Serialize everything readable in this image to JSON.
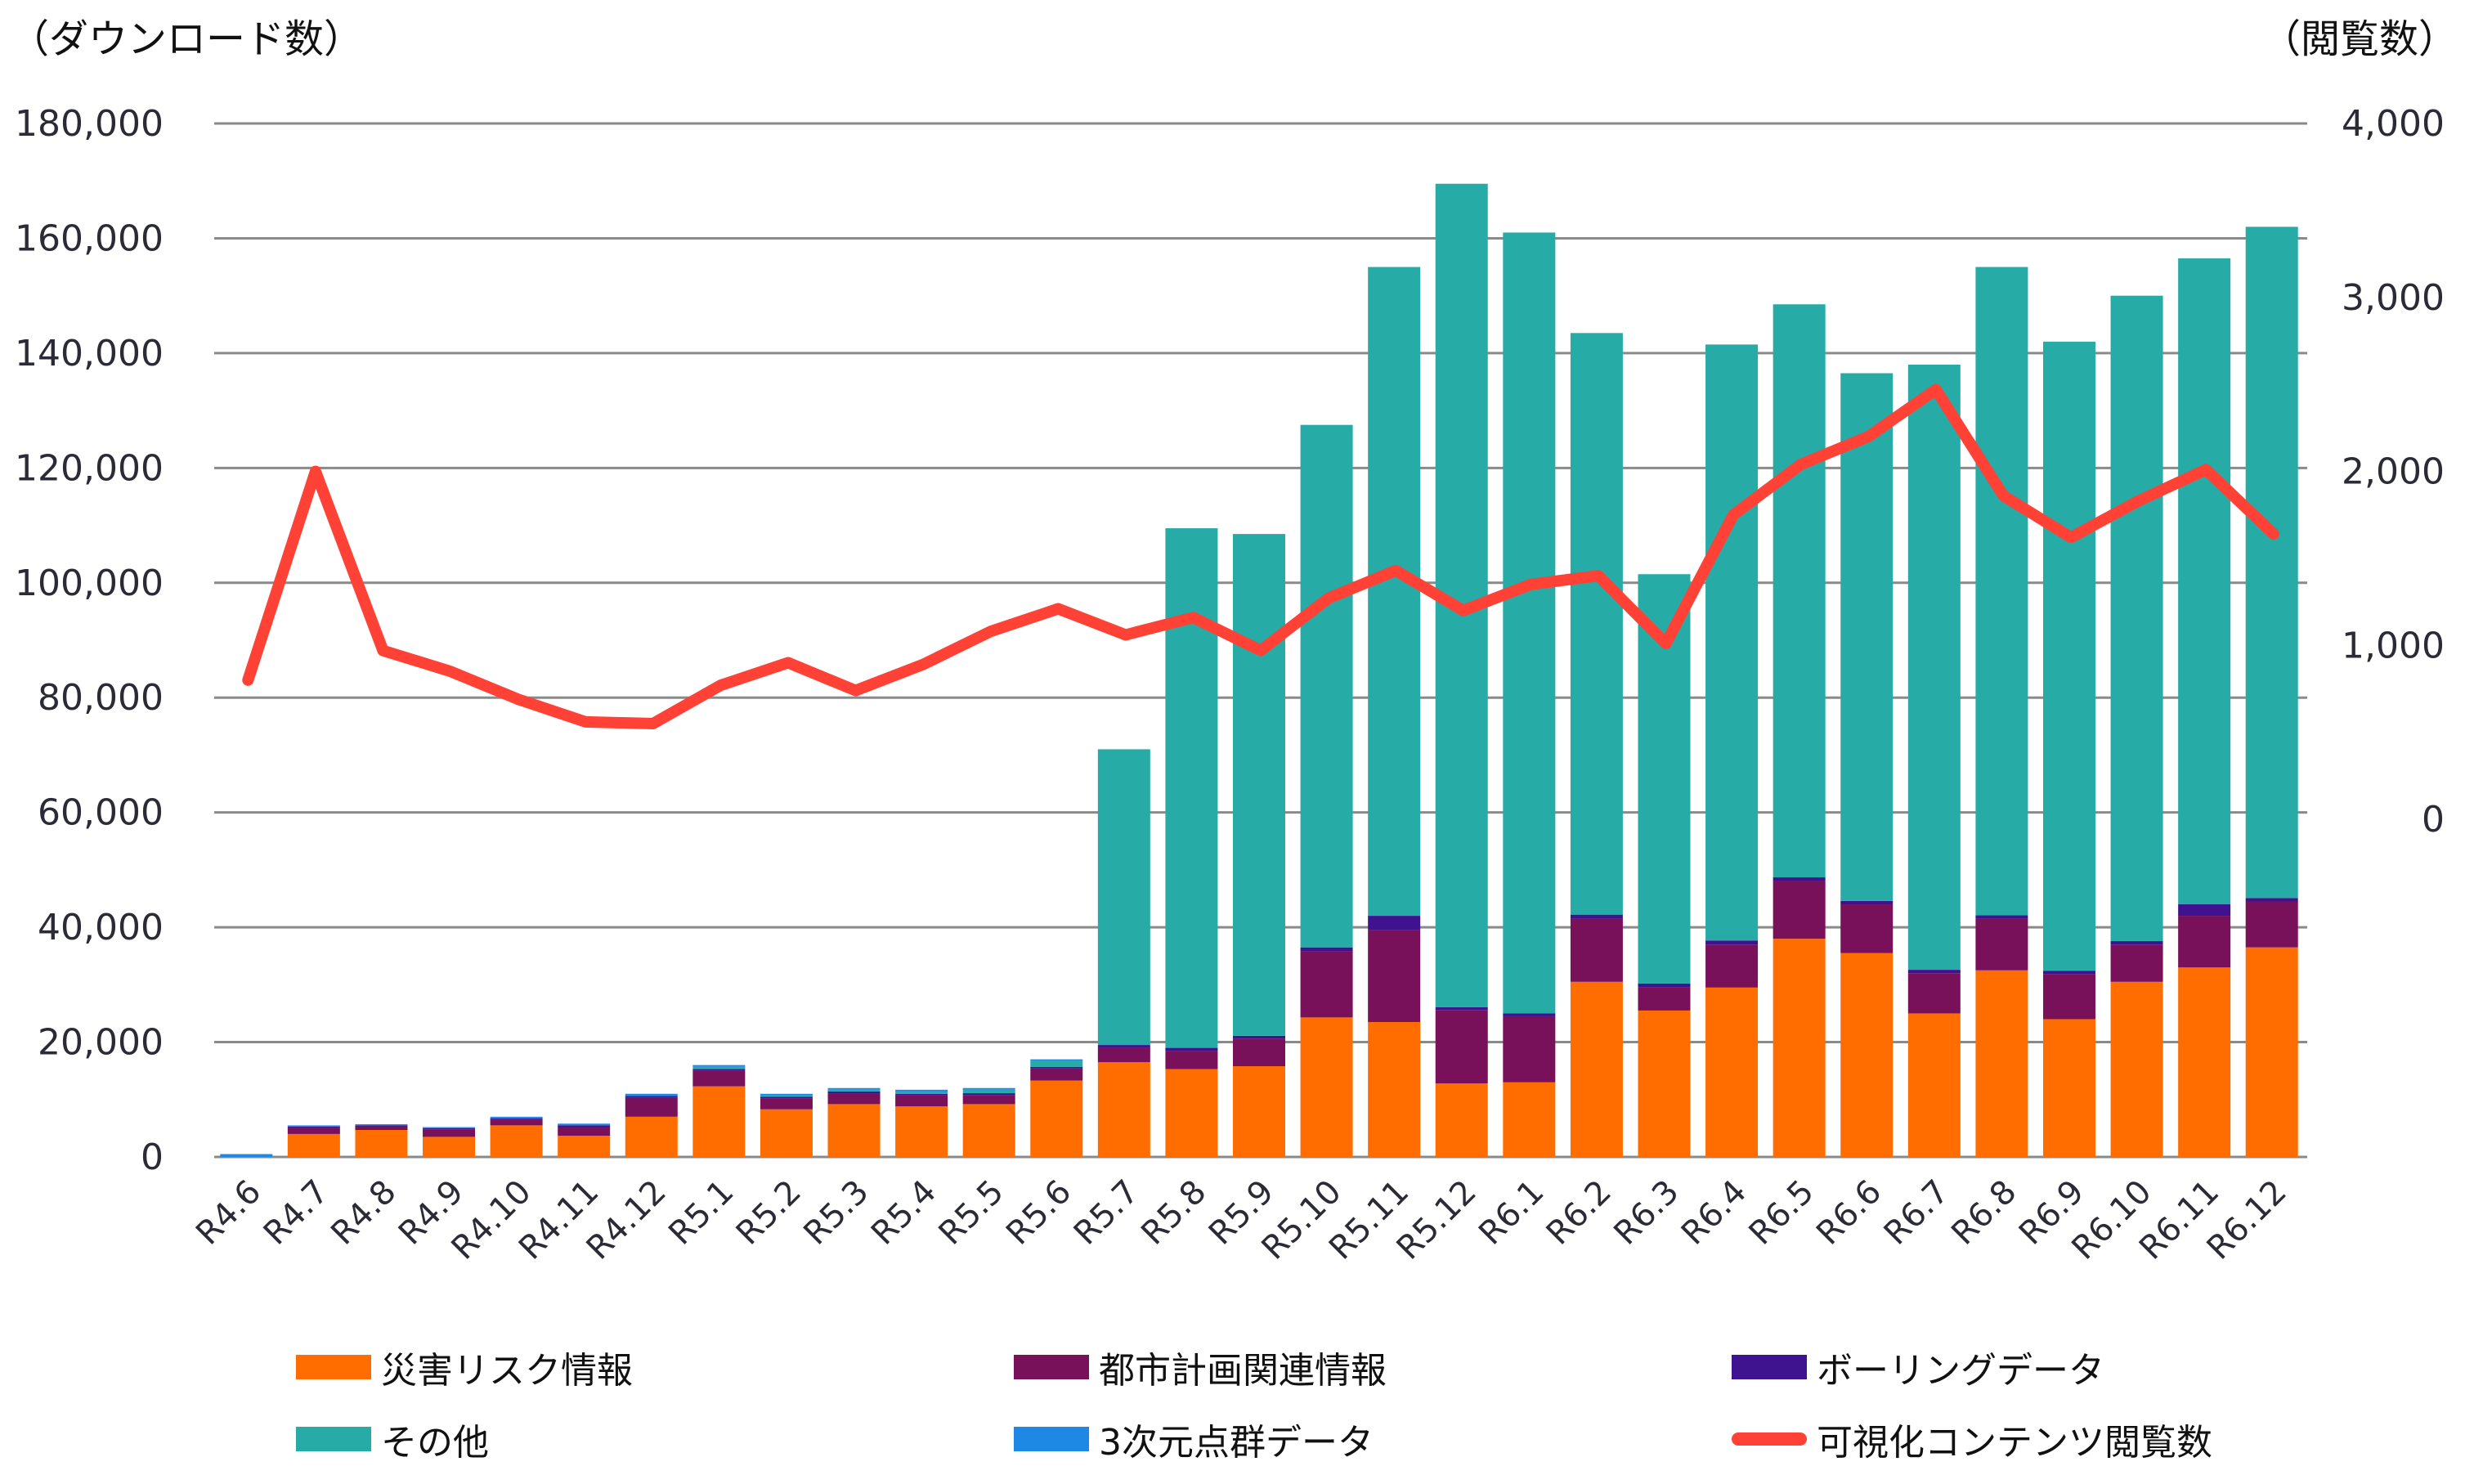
{
  "chart_data": {
    "type": "bar",
    "subtype": "stacked-bar-with-line",
    "left_axis_title": "（ダウンロード数）",
    "right_axis_title": "（閲覧数）",
    "categories": [
      "R4.6",
      "R4.7",
      "R4.8",
      "R4.9",
      "R4.10",
      "R4.11",
      "R4.12",
      "R5.1",
      "R5.2",
      "R5.3",
      "R5.4",
      "R5.5",
      "R5.6",
      "R5.7",
      "R5.8",
      "R5.9",
      "R5.10",
      "R5.11",
      "R5.12",
      "R6.1",
      "R6.2",
      "R6.3",
      "R6.4",
      "R6.5",
      "R6.6",
      "R6.7",
      "R6.8",
      "R6.9",
      "R6.10",
      "R6.11",
      "R6.12"
    ],
    "ylim_left": [
      0,
      180000
    ],
    "yticks_left": [
      "0",
      "20,000",
      "40,000",
      "60,000",
      "80,000",
      "100,000",
      "120,000",
      "140,000",
      "160,000",
      "180,000"
    ],
    "ylim_right": [
      -5500,
      4000
    ],
    "yticks_right": [
      "0",
      "1,000",
      "2,000",
      "3,000",
      "4,000"
    ],
    "grid": true,
    "legend_position": "bottom",
    "series": [
      {
        "name": "災害リスク情報",
        "type": "bar",
        "axis": "left",
        "color": "#FF6D00",
        "values": [
          0,
          4000,
          4700,
          3500,
          5500,
          3700,
          7000,
          12300,
          8300,
          9200,
          8800,
          9200,
          13300,
          16500,
          15300,
          15800,
          24300,
          23500,
          12800,
          13000,
          30500,
          25500,
          29500,
          38000,
          35500,
          25000,
          32500,
          24000,
          30500,
          33000,
          36500
        ]
      },
      {
        "name": "都市計画関連情報",
        "type": "bar",
        "axis": "left",
        "color": "#78105A",
        "values": [
          0,
          1000,
          700,
          1300,
          1000,
          1500,
          3300,
          2700,
          1900,
          1900,
          1900,
          1600,
          2100,
          2500,
          3200,
          4800,
          11500,
          16000,
          12800,
          11500,
          11000,
          4000,
          7500,
          10000,
          8500,
          7000,
          9000,
          7800,
          6500,
          9000,
          8000
        ]
      },
      {
        "name": "ボーリングデータ",
        "type": "bar",
        "axis": "left",
        "color": "#3F1390",
        "values": [
          0,
          300,
          100,
          200,
          200,
          300,
          300,
          300,
          300,
          300,
          300,
          300,
          300,
          500,
          500,
          500,
          700,
          2500,
          500,
          500,
          700,
          700,
          700,
          700,
          600,
          600,
          600,
          600,
          600,
          2000,
          600
        ]
      },
      {
        "name": "その他",
        "type": "bar",
        "axis": "left",
        "color": "#27ABA7",
        "values": [
          0,
          0,
          0,
          0,
          0,
          0,
          0,
          400,
          200,
          300,
          400,
          600,
          1000,
          51500,
          90500,
          87400,
          91000,
          113000,
          143400,
          136000,
          101300,
          71300,
          103800,
          99800,
          91900,
          105400,
          112900,
          109600,
          112400,
          112500,
          116900
        ]
      },
      {
        "name": "3次元点群データ",
        "type": "bar",
        "axis": "left",
        "color": "#1E88E5",
        "values": [
          500,
          200,
          200,
          200,
          300,
          300,
          400,
          300,
          300,
          300,
          300,
          300,
          300,
          0,
          0,
          0,
          0,
          0,
          0,
          0,
          0,
          0,
          0,
          0,
          0,
          0,
          0,
          0,
          0,
          0,
          0
        ]
      },
      {
        "name": "可視化コンテンツ閲覧数",
        "type": "line",
        "axis": "right",
        "color": "#FF4136",
        "values": [
          800,
          2000,
          970,
          850,
          690,
          560,
          550,
          770,
          900,
          740,
          890,
          1080,
          1210,
          1060,
          1160,
          970,
          1270,
          1430,
          1200,
          1350,
          1400,
          1010,
          1750,
          2040,
          2200,
          2470,
          1860,
          1620,
          1830,
          2010,
          1640
        ]
      }
    ]
  },
  "legend": [
    {
      "label": "災害リスク情報",
      "color": "#FF6D00",
      "kind": "box"
    },
    {
      "label": "都市計画関連情報",
      "color": "#78105A",
      "kind": "box"
    },
    {
      "label": "ボーリングデータ",
      "color": "#3F1390",
      "kind": "box"
    },
    {
      "label": "その他",
      "color": "#27ABA7",
      "kind": "box"
    },
    {
      "label": "3次元点群データ",
      "color": "#1E88E5",
      "kind": "box"
    },
    {
      "label": "可視化コンテンツ閲覧数",
      "color": "#FF4136",
      "kind": "line"
    }
  ]
}
